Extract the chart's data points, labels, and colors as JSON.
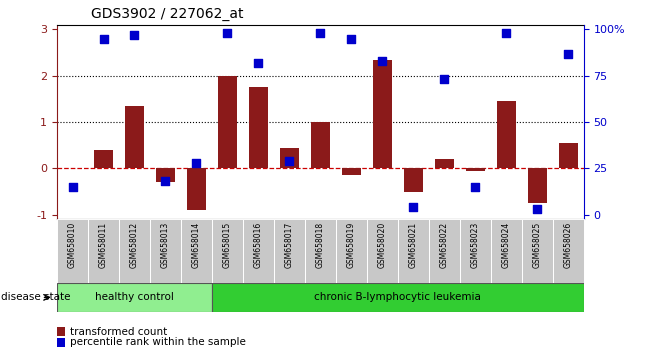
{
  "title": "GDS3902 / 227062_at",
  "samples": [
    "GSM658010",
    "GSM658011",
    "GSM658012",
    "GSM658013",
    "GSM658014",
    "GSM658015",
    "GSM658016",
    "GSM658017",
    "GSM658018",
    "GSM658019",
    "GSM658020",
    "GSM658021",
    "GSM658022",
    "GSM658023",
    "GSM658024",
    "GSM658025",
    "GSM658026"
  ],
  "bar_values": [
    0.0,
    0.4,
    1.35,
    -0.3,
    -0.9,
    2.0,
    1.75,
    0.45,
    1.0,
    -0.15,
    2.35,
    -0.5,
    0.2,
    -0.05,
    1.45,
    -0.75,
    0.55
  ],
  "dot_pct": [
    15,
    95,
    97,
    18,
    28,
    98,
    82,
    29,
    98,
    95,
    83,
    4,
    73,
    15,
    98,
    3,
    87
  ],
  "healthy_count": 5,
  "disease_groups": [
    "healthy control",
    "chronic B-lymphocytic leukemia"
  ],
  "ylim": [
    -1.1,
    3.1
  ],
  "yticks": [
    -1,
    0,
    1,
    2,
    3
  ],
  "y2ticks": [
    0,
    25,
    50,
    75,
    100
  ],
  "y2ticklabels": [
    "0",
    "25",
    "50",
    "75",
    "100%"
  ],
  "bar_color": "#8B1A1A",
  "dot_color": "#0000CC",
  "zero_line_color": "#CC0000",
  "healthy_bg": "#90EE90",
  "leukemia_bg": "#32CD32",
  "label_bg": "#C8C8C8",
  "legend_bar_label": "transformed count",
  "legend_dot_label": "percentile rank within the sample",
  "disease_state_label": "disease state"
}
